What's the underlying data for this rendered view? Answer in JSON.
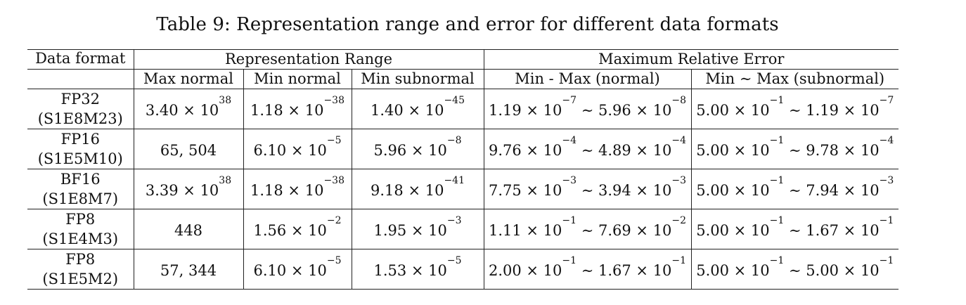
{
  "caption": "Table 9: Representation range and error for different data formats",
  "header": {
    "data_format": "Data format",
    "range_group": "Representation Range",
    "error_group": "Maximum Relative Error",
    "max_normal": "Max normal",
    "min_normal": "Min normal",
    "min_subnormal": "Min subnormal",
    "err_normal": "Min - Max (normal)",
    "err_subnormal": "Min ∼ Max (subnormal)"
  },
  "rows": [
    {
      "name": "FP32",
      "code": "(S1E8M23)",
      "max_normal": {
        "m": "3.40 × 10",
        "e": "38"
      },
      "min_normal": {
        "m": "1.18 × 10",
        "e": "−38"
      },
      "min_subnormal": {
        "m": "1.40 × 10",
        "e": "−45"
      },
      "err_normal": {
        "m1": "1.19 × 10",
        "e1": "−7",
        "m2": " ∼ 5.96 × 10",
        "e2": "−8"
      },
      "err_subnormal": {
        "m1": "5.00 × 10",
        "e1": "−1",
        "m2": " ∼ 1.19 × 10",
        "e2": "−7"
      }
    },
    {
      "name": "FP16",
      "code": "(S1E5M10)",
      "max_normal": {
        "m": "65, 504",
        "e": ""
      },
      "min_normal": {
        "m": "6.10 × 10",
        "e": "−5"
      },
      "min_subnormal": {
        "m": "5.96 × 10",
        "e": "−8"
      },
      "err_normal": {
        "m1": "9.76 × 10",
        "e1": "−4",
        "m2": " ∼ 4.89 × 10",
        "e2": "−4"
      },
      "err_subnormal": {
        "m1": "5.00 × 10",
        "e1": "−1",
        "m2": " ∼ 9.78 × 10",
        "e2": "−4"
      }
    },
    {
      "name": "BF16",
      "code": "(S1E8M7)",
      "max_normal": {
        "m": "3.39 × 10",
        "e": "38"
      },
      "min_normal": {
        "m": "1.18 × 10",
        "e": "−38"
      },
      "min_subnormal": {
        "m": "9.18 × 10",
        "e": "−41"
      },
      "err_normal": {
        "m1": "7.75 × 10",
        "e1": "−3",
        "m2": " ∼ 3.94 × 10",
        "e2": "−3"
      },
      "err_subnormal": {
        "m1": "5.00 × 10",
        "e1": "−1",
        "m2": " ∼ 7.94 × 10",
        "e2": "−3"
      }
    },
    {
      "name": "FP8",
      "code": "(S1E4M3)",
      "max_normal": {
        "m": "448",
        "e": ""
      },
      "min_normal": {
        "m": "1.56 × 10",
        "e": "−2"
      },
      "min_subnormal": {
        "m": "1.95 × 10",
        "e": "−3"
      },
      "err_normal": {
        "m1": "1.11 × 10",
        "e1": "−1",
        "m2": " ∼ 7.69 × 10",
        "e2": "−2"
      },
      "err_subnormal": {
        "m1": "5.00 × 10",
        "e1": "−1",
        "m2": " ∼ 1.67 × 10",
        "e2": "−1"
      }
    },
    {
      "name": "FP8",
      "code": "(S1E5M2)",
      "max_normal": {
        "m": "57, 344",
        "e": ""
      },
      "min_normal": {
        "m": "6.10 × 10",
        "e": "−5"
      },
      "min_subnormal": {
        "m": "1.53 × 10",
        "e": "−5"
      },
      "err_normal": {
        "m1": "2.00 × 10",
        "e1": "−1",
        "m2": " ∼ 1.67 × 10",
        "e2": "−1"
      },
      "err_subnormal": {
        "m1": "5.00 × 10",
        "e1": "−1",
        "m2": " ∼ 5.00 × 10",
        "e2": "−1"
      }
    }
  ]
}
